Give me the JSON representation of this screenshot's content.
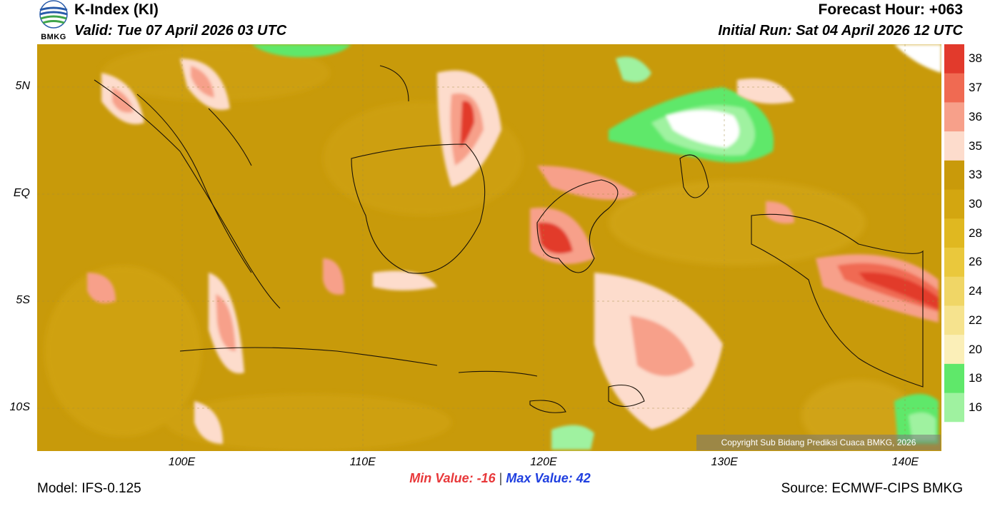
{
  "header": {
    "title": "K-Index (KI)",
    "valid": "Valid: Tue 07 April 2026 03 UTC",
    "forecast_hour": "Forecast Hour: +063",
    "initial_run": "Initial Run: Sat 04 April 2026 12 UTC",
    "logo_text": "BMKG"
  },
  "axes": {
    "lat_labels": [
      "5N",
      "EQ",
      "5S",
      "10S"
    ],
    "lat_values": [
      5,
      0,
      -5,
      -10
    ],
    "lon_labels": [
      "100E",
      "110E",
      "120E",
      "130E",
      "140E"
    ],
    "lon_values": [
      100,
      110,
      120,
      130,
      140
    ],
    "lon_range": [
      92,
      142
    ],
    "lat_range": [
      -12,
      7
    ]
  },
  "colorbar": {
    "labels": [
      "38",
      "37",
      "36",
      "35",
      "33",
      "30",
      "28",
      "26",
      "24",
      "22",
      "20",
      "18",
      "16"
    ],
    "colors": [
      "#e23a2c",
      "#f06a52",
      "#f7a08a",
      "#fddccc",
      "#c99a0a",
      "#d3a610",
      "#e0b820",
      "#eac83c",
      "#f0d666",
      "#f6e38e",
      "#fbefb8",
      "#5fe86a",
      "#9ff2a0",
      "#ffffff"
    ]
  },
  "stats": {
    "min_label": "Min Value:",
    "min_value": "-16",
    "separator": "|",
    "max_label": "Max Value:",
    "max_value": "42"
  },
  "footer": {
    "model": "Model: IFS-0.125",
    "source": "Source: ECMWF-CIPS BMKG",
    "copyright": "Copyright Sub Bidang Prediksi Cuaca BMKG, 2026"
  }
}
